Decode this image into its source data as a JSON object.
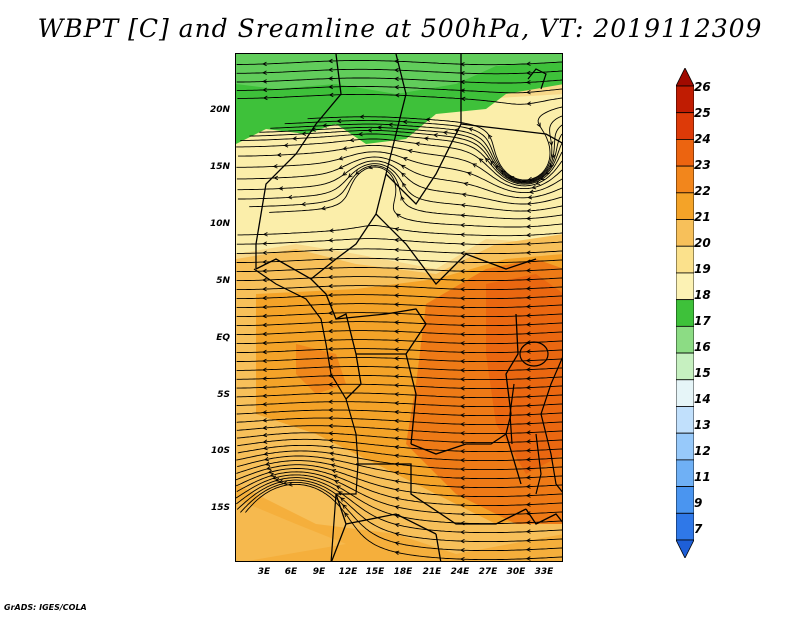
{
  "title": "WBPT [C] and Sreamline at 500hPa, VT: 2019112309",
  "credit": "GrADS: IGES/COLA",
  "lat_labels": [
    "20N",
    "15N",
    "10N",
    "5N",
    "EQ",
    "5S",
    "10S",
    "15S"
  ],
  "lon_labels": [
    "3E",
    "6E",
    "9E",
    "12E",
    "15E",
    "18E",
    "21E",
    "24E",
    "27E",
    "30E",
    "33E"
  ],
  "colorbar": {
    "labels": [
      "7",
      "9",
      "11",
      "12",
      "13",
      "14",
      "15",
      "16",
      "17",
      "18",
      "19",
      "20",
      "21",
      "22",
      "23",
      "24",
      "25",
      "26"
    ],
    "colors": [
      "#1e5fd8",
      "#2f78e8",
      "#4a95f0",
      "#6fb0f5",
      "#97c9fa",
      "#c1e0fc",
      "#e6f5f8",
      "#c6f0c0",
      "#8cdc84",
      "#3ec13a",
      "#fcf2b4",
      "#fbe18c",
      "#f7c05a",
      "#f4a328",
      "#f2861c",
      "#ec6410",
      "#dd3a08",
      "#c01c02",
      "#a00a00"
    ]
  },
  "map_fields": {
    "description_colors": {
      "green": "#3ec13a",
      "light_yellow": "#fbeeaa",
      "yellow": "#f8d98a",
      "orange_light": "#f7c05a",
      "orange": "#f4a328",
      "dark_orange": "#ee7a16",
      "red_orange": "#e8600e"
    }
  }
}
